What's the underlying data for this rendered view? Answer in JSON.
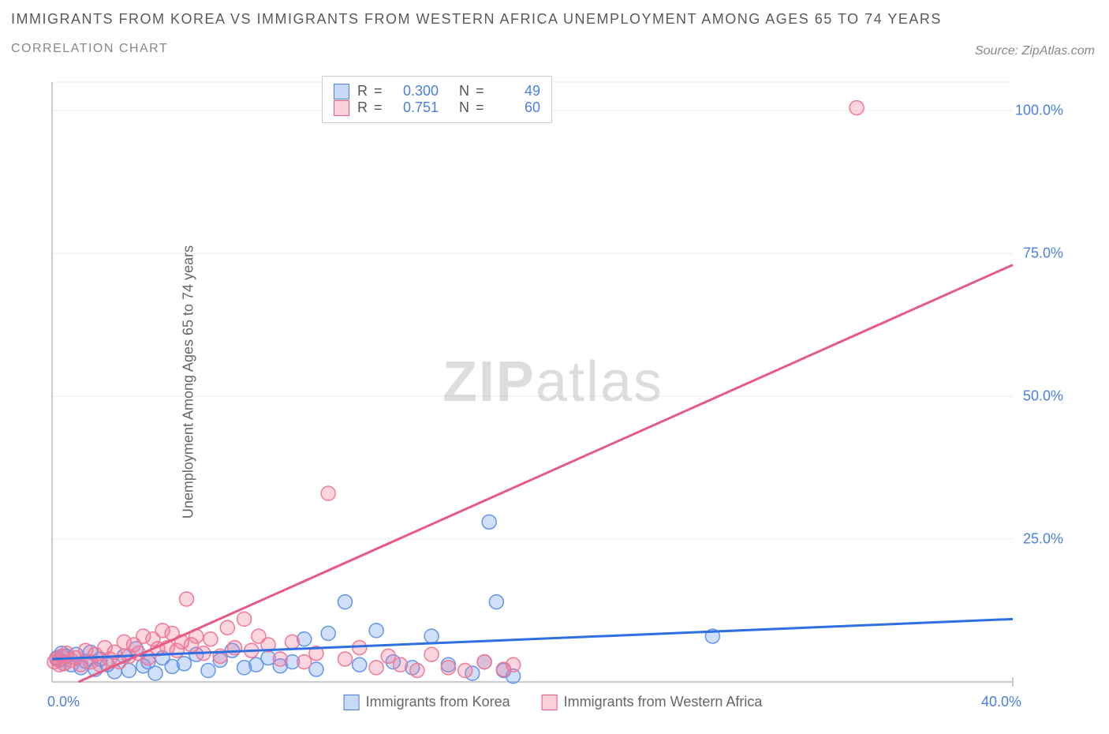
{
  "title": "IMMIGRANTS FROM KOREA VS IMMIGRANTS FROM WESTERN AFRICA UNEMPLOYMENT AMONG AGES 65 TO 74 YEARS",
  "subtitle": "CORRELATION CHART",
  "source": "Source: ZipAtlas.com",
  "y_axis_title": "Unemployment Among Ages 65 to 74 years",
  "watermark_bold": "ZIP",
  "watermark_light": "atlas",
  "chart": {
    "type": "scatter",
    "xlim": [
      0,
      40
    ],
    "ylim": [
      0,
      105
    ],
    "x_ticks": [
      0,
      40
    ],
    "x_tick_labels": [
      "0.0%",
      "40.0%"
    ],
    "y_ticks": [
      25,
      50,
      75,
      100
    ],
    "y_tick_labels": [
      "25.0%",
      "50.0%",
      "75.0%",
      "100.0%"
    ],
    "grid_color": "#eeeeee",
    "axis_color": "#bbbbbb",
    "background_color": "#ffffff",
    "series": [
      {
        "name": "Immigrants from Korea",
        "color_fill": "rgba(99,148,238,0.30)",
        "color_stroke": "#6394ee",
        "marker_radius": 9,
        "regression": {
          "x1": 0,
          "y1": 4.0,
          "x2": 40,
          "y2": 11.0,
          "color": "#2f6fe0",
          "width": 3
        },
        "R": "0.300",
        "N": "49",
        "points": [
          [
            0.2,
            4.2
          ],
          [
            0.3,
            3.8
          ],
          [
            0.4,
            5.0
          ],
          [
            0.5,
            3.2
          ],
          [
            0.6,
            4.5
          ],
          [
            0.8,
            3.0
          ],
          [
            1.0,
            4.8
          ],
          [
            1.2,
            2.5
          ],
          [
            1.4,
            3.6
          ],
          [
            1.6,
            5.2
          ],
          [
            1.8,
            2.2
          ],
          [
            2.0,
            4.0
          ],
          [
            2.3,
            3.0
          ],
          [
            2.6,
            1.8
          ],
          [
            3.0,
            4.5
          ],
          [
            3.2,
            2.0
          ],
          [
            3.5,
            5.8
          ],
          [
            3.8,
            2.8
          ],
          [
            4.0,
            3.5
          ],
          [
            4.3,
            1.5
          ],
          [
            4.6,
            4.2
          ],
          [
            5.0,
            2.7
          ],
          [
            5.5,
            3.2
          ],
          [
            6.0,
            4.8
          ],
          [
            6.5,
            2.0
          ],
          [
            7.0,
            3.8
          ],
          [
            7.5,
            5.5
          ],
          [
            8.0,
            2.5
          ],
          [
            8.5,
            3.0
          ],
          [
            9.0,
            4.2
          ],
          [
            9.5,
            2.8
          ],
          [
            10.0,
            3.5
          ],
          [
            10.5,
            7.5
          ],
          [
            11.0,
            2.2
          ],
          [
            11.5,
            8.5
          ],
          [
            12.2,
            14.0
          ],
          [
            12.8,
            3.0
          ],
          [
            13.5,
            9.0
          ],
          [
            14.2,
            3.5
          ],
          [
            15.0,
            2.5
          ],
          [
            15.8,
            8.0
          ],
          [
            16.5,
            3.0
          ],
          [
            17.5,
            1.5
          ],
          [
            18.2,
            28.0
          ],
          [
            18.5,
            14.0
          ],
          [
            18.8,
            2.0
          ],
          [
            19.2,
            1.0
          ],
          [
            27.5,
            8.0
          ],
          [
            18.0,
            3.5
          ]
        ]
      },
      {
        "name": "Immigrants from Western Africa",
        "color_fill": "rgba(242,120,150,0.30)",
        "color_stroke": "#f27896",
        "marker_radius": 9,
        "regression": {
          "x1": 1.1,
          "y1": 0.0,
          "x2": 40,
          "y2": 73.0,
          "color": "#e65a83",
          "width": 3
        },
        "R": "0.751",
        "N": "60",
        "points": [
          [
            0.1,
            3.5
          ],
          [
            0.2,
            4.0
          ],
          [
            0.3,
            3.0
          ],
          [
            0.4,
            4.5
          ],
          [
            0.5,
            3.2
          ],
          [
            0.6,
            5.0
          ],
          [
            0.8,
            3.8
          ],
          [
            1.0,
            4.2
          ],
          [
            1.2,
            3.0
          ],
          [
            1.4,
            5.5
          ],
          [
            1.6,
            3.5
          ],
          [
            1.8,
            4.8
          ],
          [
            2.0,
            3.0
          ],
          [
            2.2,
            6.0
          ],
          [
            2.4,
            4.0
          ],
          [
            2.6,
            5.2
          ],
          [
            2.8,
            3.5
          ],
          [
            3.0,
            7.0
          ],
          [
            3.2,
            4.5
          ],
          [
            3.4,
            6.5
          ],
          [
            3.6,
            5.0
          ],
          [
            3.8,
            8.0
          ],
          [
            4.0,
            4.2
          ],
          [
            4.2,
            7.5
          ],
          [
            4.4,
            5.8
          ],
          [
            4.6,
            9.0
          ],
          [
            4.8,
            6.0
          ],
          [
            5.0,
            8.5
          ],
          [
            5.2,
            5.5
          ],
          [
            5.4,
            7.0
          ],
          [
            5.6,
            14.5
          ],
          [
            5.8,
            6.5
          ],
          [
            6.0,
            8.0
          ],
          [
            6.3,
            5.0
          ],
          [
            6.6,
            7.5
          ],
          [
            7.0,
            4.5
          ],
          [
            7.3,
            9.5
          ],
          [
            7.6,
            6.0
          ],
          [
            8.0,
            11.0
          ],
          [
            8.3,
            5.5
          ],
          [
            8.6,
            8.0
          ],
          [
            9.0,
            6.5
          ],
          [
            9.5,
            4.0
          ],
          [
            10.0,
            7.0
          ],
          [
            10.5,
            3.5
          ],
          [
            11.0,
            5.0
          ],
          [
            11.5,
            33.0
          ],
          [
            12.2,
            4.0
          ],
          [
            12.8,
            6.0
          ],
          [
            13.5,
            2.5
          ],
          [
            14.0,
            4.5
          ],
          [
            14.5,
            3.0
          ],
          [
            15.2,
            2.0
          ],
          [
            15.8,
            4.8
          ],
          [
            16.5,
            2.5
          ],
          [
            17.2,
            2.0
          ],
          [
            18.0,
            3.5
          ],
          [
            18.8,
            2.2
          ],
          [
            19.2,
            3.0
          ],
          [
            33.5,
            100.5
          ]
        ]
      }
    ]
  },
  "stats_labels": {
    "R": "R =",
    "N": "N ="
  },
  "legend_bottom": [
    {
      "swatch": "blue",
      "label": "Immigrants from Korea"
    },
    {
      "swatch": "pink",
      "label": "Immigrants from Western Africa"
    }
  ]
}
